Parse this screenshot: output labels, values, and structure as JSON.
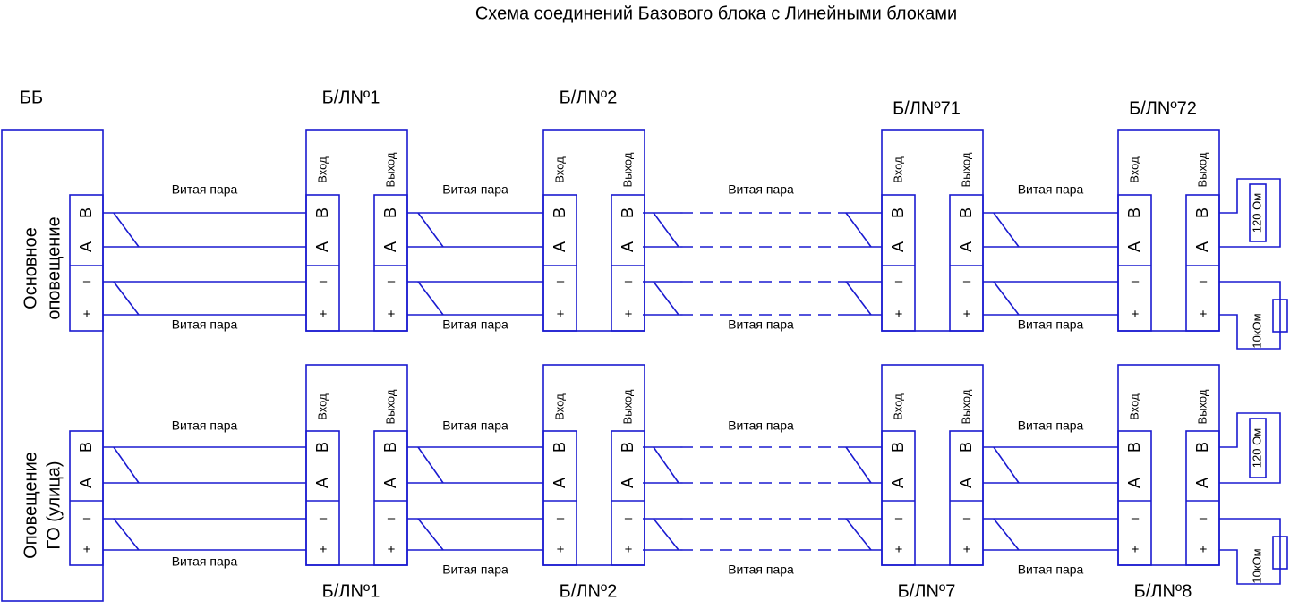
{
  "title": "Схема соединений Базового блока с Линейными блоками",
  "base_block": {
    "label": "ББ",
    "sections": [
      {
        "lines": [
          "Основное",
          "оповещение"
        ],
        "terminals": [
          "B",
          "A",
          "–",
          "+"
        ]
      },
      {
        "lines": [
          "Оповещение",
          "ГО (улица)"
        ],
        "terminals": [
          "B",
          "A",
          "–",
          "+"
        ]
      }
    ]
  },
  "rows": [
    {
      "blocks": [
        {
          "label": "Б/ЛNº1",
          "input": {
            "label": "Вход",
            "terminals": [
              "B",
              "A",
              "–",
              "+"
            ]
          },
          "output": {
            "label": "Выход",
            "terminals": [
              "B",
              "A",
              "–",
              "+"
            ]
          }
        },
        {
          "label": "Б/ЛNº2",
          "input": {
            "label": "Вход",
            "terminals": [
              "B",
              "A",
              "–",
              "+"
            ]
          },
          "output": {
            "label": "Выход",
            "terminals": [
              "B",
              "A",
              "–",
              "+"
            ]
          }
        },
        {
          "label": "Б/ЛNº71",
          "input": {
            "label": "Вход",
            "terminals": [
              "B",
              "A",
              "–",
              "+"
            ]
          },
          "output": {
            "label": "Выход",
            "terminals": [
              "B",
              "A",
              "–",
              "+"
            ]
          }
        },
        {
          "label": "Б/ЛNº72",
          "input": {
            "label": "Вход",
            "terminals": [
              "B",
              "A",
              "–",
              "+"
            ]
          },
          "output": {
            "label": "Выход",
            "terminals": [
              "B",
              "A",
              "–",
              "+"
            ]
          }
        }
      ],
      "cables": [
        {
          "top": "Витая пара",
          "bottom": "Витая пара"
        },
        {
          "top": "Витая пара",
          "bottom": "Витая пара"
        },
        {
          "top": "Витая пара",
          "bottom": "Витая пара"
        },
        {
          "top": "Витая пара",
          "bottom": "Витая пара"
        }
      ],
      "terminators": [
        "120 Ом",
        "10кОм"
      ]
    },
    {
      "blocks": [
        {
          "label": "Б/ЛNº1",
          "input": {
            "label": "Вход",
            "terminals": [
              "B",
              "A",
              "–",
              "+"
            ]
          },
          "output": {
            "label": "Выход",
            "terminals": [
              "B",
              "A",
              "–",
              "+"
            ]
          }
        },
        {
          "label": "Б/ЛNº2",
          "input": {
            "label": "Вход",
            "terminals": [
              "B",
              "A",
              "–",
              "+"
            ]
          },
          "output": {
            "label": "Выход",
            "terminals": [
              "B",
              "A",
              "–",
              "+"
            ]
          }
        },
        {
          "label": "Б/ЛNº7",
          "input": {
            "label": "Вход",
            "terminals": [
              "B",
              "A",
              "–",
              "+"
            ]
          },
          "output": {
            "label": "Выход",
            "terminals": [
              "B",
              "A",
              "–",
              "+"
            ]
          }
        },
        {
          "label": "Б/ЛNº8",
          "input": {
            "label": "Вход",
            "terminals": [
              "B",
              "A",
              "–",
              "+"
            ]
          },
          "output": {
            "label": "Выход",
            "terminals": [
              "B",
              "A",
              "–",
              "+"
            ]
          }
        }
      ],
      "cables": [
        {
          "top": "Витая пара",
          "bottom": "Витая пара"
        },
        {
          "top": "Витая пара",
          "bottom": "Витая пара"
        },
        {
          "top": "Витая пара",
          "bottom": "Витая пара"
        },
        {
          "top": "Витая пара",
          "bottom": "Витая пара"
        }
      ],
      "terminators": [
        "120 Ом",
        "10кОм"
      ]
    }
  ]
}
